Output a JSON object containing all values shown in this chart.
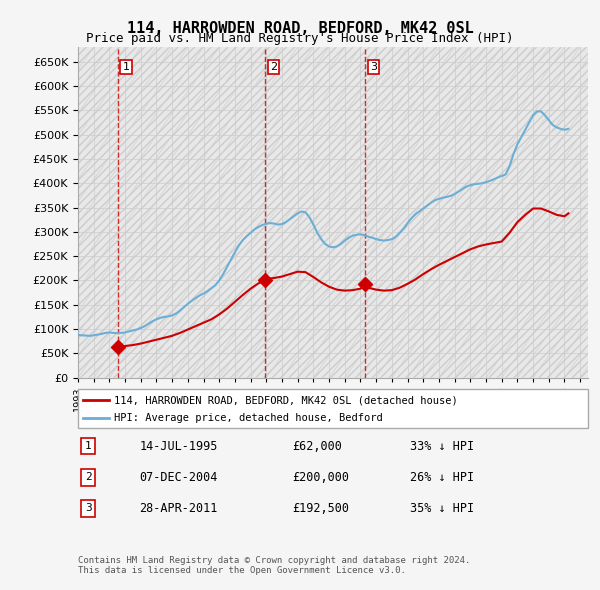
{
  "title": "114, HARROWDEN ROAD, BEDFORD, MK42 0SL",
  "subtitle": "Price paid vs. HM Land Registry's House Price Index (HPI)",
  "ylabel": "",
  "ylim": [
    0,
    680000
  ],
  "yticks": [
    0,
    50000,
    100000,
    150000,
    200000,
    250000,
    300000,
    350000,
    400000,
    450000,
    500000,
    550000,
    600000,
    650000
  ],
  "background_color": "#f0f0f0",
  "plot_bg_color": "#ffffff",
  "hpi_color": "#6baed6",
  "price_color": "#cc0000",
  "transaction_marker_color": "#cc0000",
  "vline_color": "#cc0000",
  "transactions": [
    {
      "date_num": 1995.54,
      "price": 62000,
      "label": "1"
    },
    {
      "date_num": 2004.93,
      "price": 200000,
      "label": "2"
    },
    {
      "date_num": 2011.32,
      "price": 192500,
      "label": "3"
    }
  ],
  "transaction_table": [
    {
      "num": "1",
      "date": "14-JUL-1995",
      "price": "£62,000",
      "pct": "33% ↓ HPI"
    },
    {
      "num": "2",
      "date": "07-DEC-2004",
      "price": "£200,000",
      "pct": "26% ↓ HPI"
    },
    {
      "num": "3",
      "date": "28-APR-2011",
      "price": "£192,500",
      "pct": "35% ↓ HPI"
    }
  ],
  "legend_entries": [
    {
      "label": "114, HARROWDEN ROAD, BEDFORD, MK42 0SL (detached house)",
      "color": "#cc0000",
      "lw": 2
    },
    {
      "label": "HPI: Average price, detached house, Bedford",
      "color": "#6baed6",
      "lw": 2
    }
  ],
  "footer": "Contains HM Land Registry data © Crown copyright and database right 2024.\nThis data is licensed under the Open Government Licence v3.0.",
  "hpi_data": {
    "years": [
      1993.0,
      1993.25,
      1993.5,
      1993.75,
      1994.0,
      1994.25,
      1994.5,
      1994.75,
      1995.0,
      1995.25,
      1995.5,
      1995.75,
      1996.0,
      1996.25,
      1996.5,
      1996.75,
      1997.0,
      1997.25,
      1997.5,
      1997.75,
      1998.0,
      1998.25,
      1998.5,
      1998.75,
      1999.0,
      1999.25,
      1999.5,
      1999.75,
      2000.0,
      2000.25,
      2000.5,
      2000.75,
      2001.0,
      2001.25,
      2001.5,
      2001.75,
      2002.0,
      2002.25,
      2002.5,
      2002.75,
      2003.0,
      2003.25,
      2003.5,
      2003.75,
      2004.0,
      2004.25,
      2004.5,
      2004.75,
      2005.0,
      2005.25,
      2005.5,
      2005.75,
      2006.0,
      2006.25,
      2006.5,
      2006.75,
      2007.0,
      2007.25,
      2007.5,
      2007.75,
      2008.0,
      2008.25,
      2008.5,
      2008.75,
      2009.0,
      2009.25,
      2009.5,
      2009.75,
      2010.0,
      2010.25,
      2010.5,
      2010.75,
      2011.0,
      2011.25,
      2011.5,
      2011.75,
      2012.0,
      2012.25,
      2012.5,
      2012.75,
      2013.0,
      2013.25,
      2013.5,
      2013.75,
      2014.0,
      2014.25,
      2014.5,
      2014.75,
      2015.0,
      2015.25,
      2015.5,
      2015.75,
      2016.0,
      2016.25,
      2016.5,
      2016.75,
      2017.0,
      2017.25,
      2017.5,
      2017.75,
      2018.0,
      2018.25,
      2018.5,
      2018.75,
      2019.0,
      2019.25,
      2019.5,
      2019.75,
      2020.0,
      2020.25,
      2020.5,
      2020.75,
      2021.0,
      2021.25,
      2021.5,
      2021.75,
      2022.0,
      2022.25,
      2022.5,
      2022.75,
      2023.0,
      2023.25,
      2023.5,
      2023.75,
      2024.0,
      2024.25
    ],
    "values": [
      88000,
      87000,
      86500,
      86000,
      87000,
      88500,
      90000,
      92000,
      93000,
      92000,
      91500,
      92000,
      93000,
      95000,
      97000,
      99000,
      102000,
      106000,
      111000,
      116000,
      120000,
      123000,
      125000,
      126000,
      128000,
      132000,
      138000,
      145000,
      152000,
      158000,
      164000,
      169000,
      173000,
      178000,
      184000,
      190000,
      200000,
      213000,
      228000,
      243000,
      258000,
      272000,
      283000,
      291000,
      298000,
      305000,
      310000,
      314000,
      317000,
      318000,
      317000,
      315000,
      316000,
      320000,
      326000,
      332000,
      338000,
      342000,
      340000,
      330000,
      315000,
      298000,
      285000,
      275000,
      270000,
      268000,
      270000,
      275000,
      282000,
      288000,
      292000,
      294000,
      295000,
      293000,
      290000,
      288000,
      285000,
      283000,
      282000,
      283000,
      285000,
      290000,
      298000,
      307000,
      318000,
      328000,
      336000,
      342000,
      348000,
      354000,
      360000,
      365000,
      368000,
      370000,
      372000,
      374000,
      378000,
      383000,
      388000,
      393000,
      396000,
      398000,
      399000,
      400000,
      402000,
      405000,
      408000,
      412000,
      415000,
      418000,
      435000,
      460000,
      480000,
      495000,
      510000,
      525000,
      540000,
      548000,
      548000,
      540000,
      530000,
      520000,
      515000,
      512000,
      510000,
      512000
    ]
  },
  "price_series": {
    "years": [
      1995.54,
      1995.6,
      1996.0,
      1996.5,
      1997.0,
      1997.5,
      1998.0,
      1998.5,
      1999.0,
      1999.5,
      2000.0,
      2000.5,
      2001.0,
      2001.5,
      2002.0,
      2002.5,
      2003.0,
      2003.5,
      2004.0,
      2004.5,
      2004.93,
      2005.0,
      2005.5,
      2006.0,
      2006.5,
      2007.0,
      2007.5,
      2008.0,
      2008.5,
      2009.0,
      2009.5,
      2010.0,
      2010.5,
      2011.0,
      2011.32,
      2011.5,
      2012.0,
      2012.5,
      2013.0,
      2013.5,
      2014.0,
      2014.5,
      2015.0,
      2015.5,
      2016.0,
      2016.5,
      2017.0,
      2017.5,
      2018.0,
      2018.5,
      2019.0,
      2019.5,
      2020.0,
      2020.5,
      2021.0,
      2021.5,
      2022.0,
      2022.5,
      2023.0,
      2023.5,
      2024.0,
      2024.25
    ],
    "values": [
      62000,
      63000,
      65000,
      67000,
      70000,
      74000,
      78000,
      82000,
      86000,
      92000,
      99000,
      106000,
      113000,
      120000,
      130000,
      142000,
      156000,
      170000,
      183000,
      194000,
      200000,
      203000,
      205000,
      208000,
      213000,
      218000,
      217000,
      207000,
      196000,
      187000,
      181000,
      179000,
      180000,
      183000,
      192500,
      185000,
      181000,
      179000,
      180000,
      185000,
      193000,
      202000,
      213000,
      223000,
      232000,
      240000,
      248000,
      256000,
      264000,
      270000,
      274000,
      277000,
      280000,
      298000,
      320000,
      335000,
      348000,
      348000,
      342000,
      335000,
      332000,
      338000
    ]
  }
}
